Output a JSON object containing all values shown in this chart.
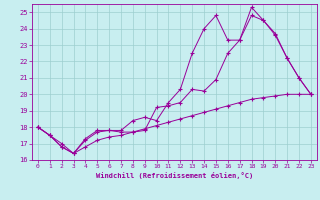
{
  "xlabel": "Windchill (Refroidissement éolien,°C)",
  "bg_color": "#c8eef0",
  "grid_color": "#9dcfcf",
  "line_color": "#990099",
  "xlim": [
    -0.5,
    23.5
  ],
  "ylim": [
    16,
    25.5
  ],
  "yticks": [
    16,
    17,
    18,
    19,
    20,
    21,
    22,
    23,
    24,
    25
  ],
  "xticks": [
    0,
    1,
    2,
    3,
    4,
    5,
    6,
    7,
    8,
    9,
    10,
    11,
    12,
    13,
    14,
    15,
    16,
    17,
    18,
    19,
    20,
    21,
    22,
    23
  ],
  "line1_x": [
    0,
    1,
    2,
    3,
    4,
    5,
    6,
    7,
    8,
    9,
    10,
    11,
    12,
    13,
    14,
    15,
    16,
    17,
    18,
    19,
    20,
    21,
    22,
    23
  ],
  "line1_y": [
    18.0,
    17.5,
    17.0,
    16.4,
    17.3,
    17.8,
    17.8,
    17.8,
    18.4,
    18.6,
    18.4,
    19.5,
    20.3,
    22.5,
    24.0,
    24.8,
    23.3,
    23.3,
    25.3,
    24.5,
    23.7,
    22.2,
    21.0,
    20.0
  ],
  "line2_x": [
    0,
    1,
    2,
    3,
    4,
    5,
    6,
    7,
    8,
    9,
    10,
    11,
    12,
    13,
    14,
    15,
    16,
    17,
    18,
    19,
    20,
    21,
    22,
    23
  ],
  "line2_y": [
    18.0,
    17.5,
    16.8,
    16.4,
    17.2,
    17.7,
    17.8,
    17.7,
    17.7,
    17.8,
    19.2,
    19.3,
    19.5,
    20.3,
    20.2,
    20.9,
    22.5,
    23.3,
    24.8,
    24.5,
    23.6,
    22.2,
    21.0,
    20.0
  ],
  "line3_x": [
    0,
    1,
    2,
    3,
    4,
    5,
    6,
    7,
    8,
    9,
    10,
    11,
    12,
    13,
    14,
    15,
    16,
    17,
    18,
    19,
    20,
    21,
    22,
    23
  ],
  "line3_y": [
    18.0,
    17.5,
    16.8,
    16.4,
    16.8,
    17.2,
    17.4,
    17.5,
    17.7,
    17.9,
    18.1,
    18.3,
    18.5,
    18.7,
    18.9,
    19.1,
    19.3,
    19.5,
    19.7,
    19.8,
    19.9,
    20.0,
    20.0,
    20.0
  ]
}
